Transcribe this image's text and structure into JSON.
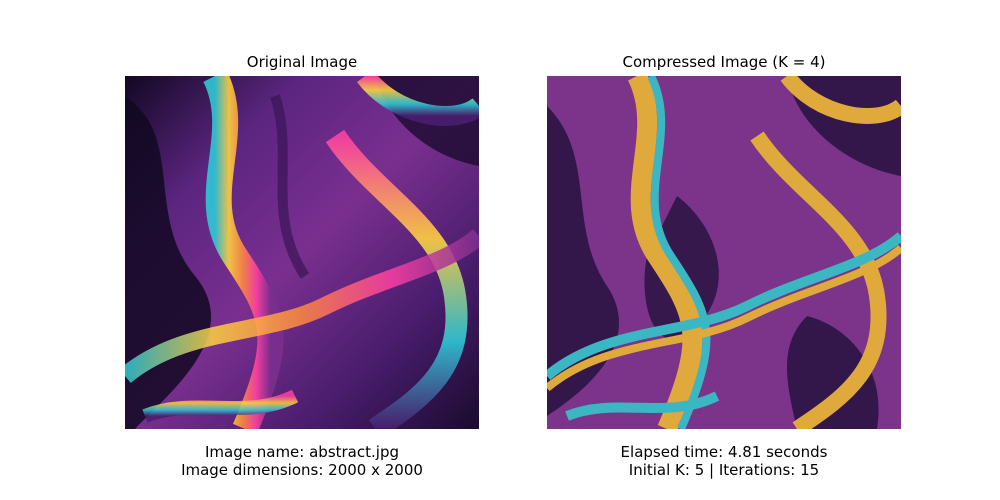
{
  "panels": {
    "original": {
      "title": "Original Image",
      "caption_line1": "Image name: abstract.jpg",
      "caption_line2": "Image dimensions: 2000 x 2000"
    },
    "compressed": {
      "title": "Compressed Image (K = 4)",
      "caption_line1": "Elapsed time: 4.81 seconds",
      "caption_line2": "Initial K: 5 | Iterations: 15"
    }
  },
  "palette": {
    "original": [
      "#1a0b2e",
      "#4a1d6e",
      "#7a2f8f",
      "#ff3fa4",
      "#ffd23f",
      "#2ec9d6"
    ],
    "compressed": [
      "#34174a",
      "#7b3489",
      "#e0a93b",
      "#3bb7c4"
    ]
  }
}
